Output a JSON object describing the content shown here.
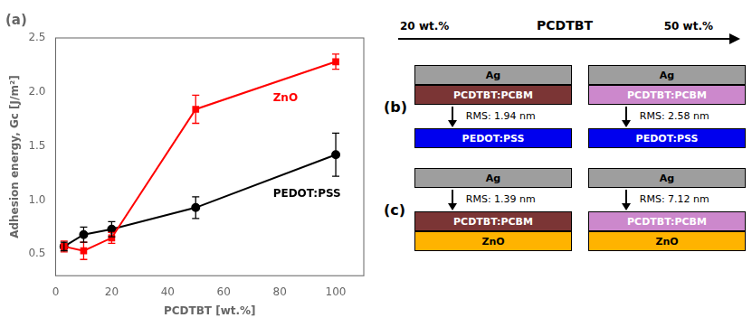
{
  "chart_data": {
    "type": "line",
    "title": "(a)",
    "x_label": "PCDTBT [wt.%]",
    "y_label": "Adhesion energy, Gc [J/m²]",
    "xlim": [
      0,
      110
    ],
    "ylim": [
      0.3,
      2.5
    ],
    "xticks": [
      0,
      20,
      40,
      60,
      80,
      100
    ],
    "yticks": [
      0.5,
      {
        "value": 1.0,
        "label": "1.0"
      },
      1.5,
      {
        "value": 2.0,
        "label": "2.0"
      },
      2.5
    ],
    "grid": false,
    "series": [
      {
        "name": "ZnO",
        "color": "#FF0000",
        "marker": "square",
        "x": [
          3,
          10,
          20,
          50,
          100
        ],
        "values": [
          0.57,
          0.53,
          0.65,
          1.84,
          2.28
        ],
        "errors": [
          0.05,
          0.08,
          0.05,
          0.13,
          0.07
        ]
      },
      {
        "name": "PEDOT:PSS",
        "color": "#000000",
        "marker": "circle",
        "x": [
          3,
          10,
          20,
          50,
          100
        ],
        "values": [
          0.57,
          0.68,
          0.73,
          0.93,
          1.42
        ],
        "errors": [
          0.04,
          0.07,
          0.07,
          0.1,
          0.2
        ]
      }
    ],
    "diagram": {
      "arrow_label": "PCDTBT",
      "arrow_left": "20 wt.%",
      "arrow_right": "50 wt.%",
      "border_color": "#000000",
      "panels": [
        {
          "label": "(b)",
          "stacks": [
            {
              "layers": [
                {
                  "name": "Ag",
                  "color": "#9E9E9E",
                  "text_color": "#000000"
                },
                {
                  "name": "PCDTBT:PCBM",
                  "color": "#7B3535",
                  "text_color": "#FFFFFF"
                },
                {
                  "rms": "RMS: 1.94 nm"
                },
                {
                  "name": "PEDOT:PSS",
                  "color": "#0000EE",
                  "text_color": "#FFFFFF"
                }
              ]
            },
            {
              "layers": [
                {
                  "name": "Ag",
                  "color": "#9E9E9E",
                  "text_color": "#000000"
                },
                {
                  "name": "PCDTBT:PCBM",
                  "color": "#CC88CC",
                  "text_color": "#FFFFFF"
                },
                {
                  "rms": "RMS: 2.58 nm"
                },
                {
                  "name": "PEDOT:PSS",
                  "color": "#0000EE",
                  "text_color": "#FFFFFF"
                }
              ]
            }
          ]
        },
        {
          "label": "(c)",
          "stacks": [
            {
              "layers": [
                {
                  "name": "Ag",
                  "color": "#9E9E9E",
                  "text_color": "#000000"
                },
                {
                  "rms": "RMS: 1.39 nm"
                },
                {
                  "name": "PCDTBT:PCBM",
                  "color": "#7B3535",
                  "text_color": "#FFFFFF"
                },
                {
                  "name": "ZnO",
                  "color": "#FFB300",
                  "text_color": "#000000"
                }
              ]
            },
            {
              "layers": [
                {
                  "name": "Ag",
                  "color": "#9E9E9E",
                  "text_color": "#000000"
                },
                {
                  "rms": "RMS: 7.12 nm"
                },
                {
                  "name": "PCDTBT:PCBM",
                  "color": "#CC88CC",
                  "text_color": "#FFFFFF"
                },
                {
                  "name": "ZnO",
                  "color": "#FFB300",
                  "text_color": "#000000"
                }
              ]
            }
          ]
        }
      ]
    }
  }
}
